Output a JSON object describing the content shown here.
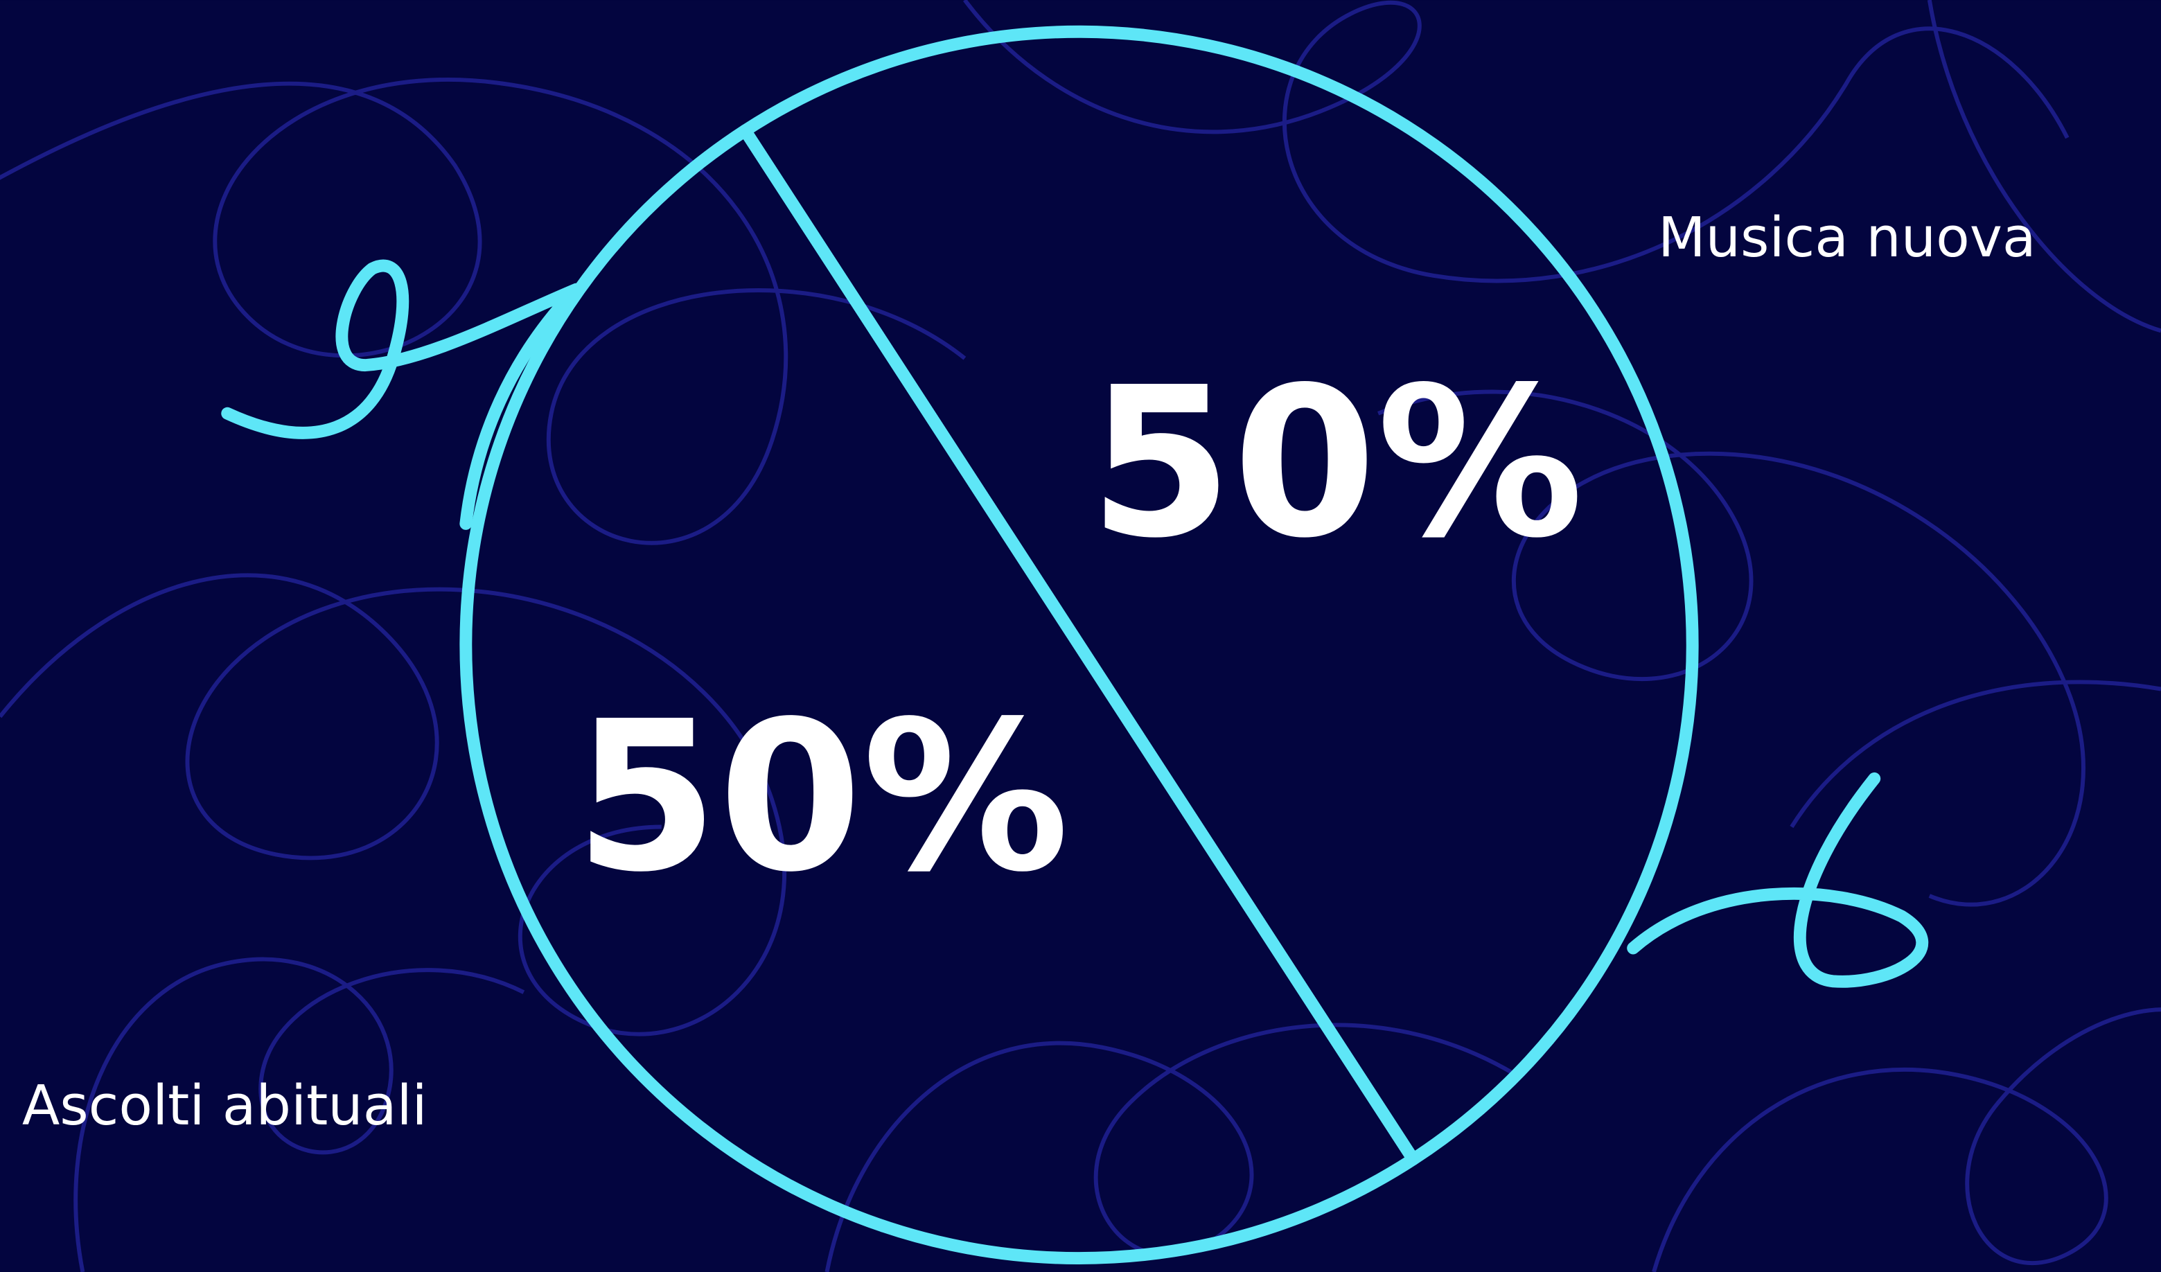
{
  "chart_data": {
    "type": "pie",
    "categories": [
      "Ascolti abituali",
      "Musica nuova"
    ],
    "values": [
      50,
      50
    ],
    "value_labels": [
      "50%",
      "50%"
    ],
    "color": "#5ee6f7"
  }
}
